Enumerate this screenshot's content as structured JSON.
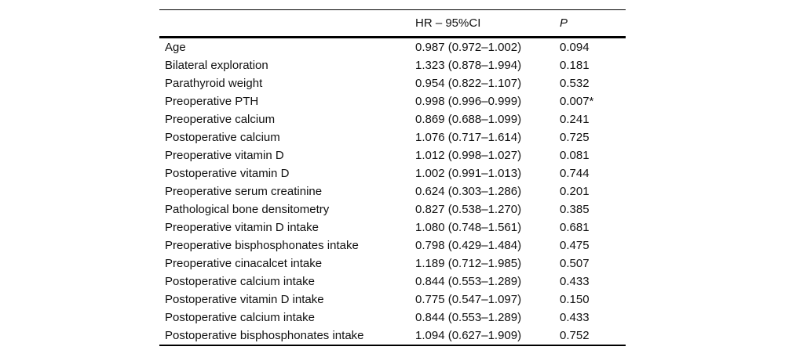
{
  "table": {
    "header": {
      "col1": "",
      "col2": "HR – 95%CI",
      "col3": "P"
    },
    "rows": [
      {
        "label": "Age",
        "hr_ci": "0.987 (0.972–1.002)",
        "p": "0.094"
      },
      {
        "label": "Bilateral exploration",
        "hr_ci": "1.323 (0.878–1.994)",
        "p": "0.181"
      },
      {
        "label": "Parathyroid weight",
        "hr_ci": "0.954 (0.822–1.107)",
        "p": "0.532"
      },
      {
        "label": "Preoperative PTH",
        "hr_ci": "0.998 (0.996–0.999)",
        "p": "0.007*"
      },
      {
        "label": "Preoperative calcium",
        "hr_ci": "0.869 (0.688–1.099)",
        "p": "0.241"
      },
      {
        "label": "Postoperative calcium",
        "hr_ci": "1.076 (0.717–1.614)",
        "p": "0.725"
      },
      {
        "label": "Preoperative vitamin D",
        "hr_ci": "1.012 (0.998–1.027)",
        "p": "0.081"
      },
      {
        "label": "Postoperative vitamin D",
        "hr_ci": "1.002 (0.991–1.013)",
        "p": "0.744"
      },
      {
        "label": "Preoperative serum creatinine",
        "hr_ci": "0.624 (0.303–1.286)",
        "p": "0.201"
      },
      {
        "label": "Pathological bone densitometry",
        "hr_ci": "0.827 (0.538–1.270)",
        "p": "0.385"
      },
      {
        "label": "Preoperative vitamin D intake",
        "hr_ci": "1.080 (0.748–1.561)",
        "p": "0.681"
      },
      {
        "label": "Preoperative bisphosphonates intake",
        "hr_ci": "0.798 (0.429–1.484)",
        "p": "0.475"
      },
      {
        "label": "Preoperative cinacalcet intake",
        "hr_ci": "1.189 (0.712–1.985)",
        "p": "0.507"
      },
      {
        "label": "Postoperative calcium intake",
        "hr_ci": "0.844 (0.553–1.289)",
        "p": "0.433"
      },
      {
        "label": "Postoperative vitamin D intake",
        "hr_ci": "0.775 (0.547–1.097)",
        "p": "0.150"
      },
      {
        "label": "Postoperative calcium intake",
        "hr_ci": "0.844 (0.553–1.289)",
        "p": "0.433"
      },
      {
        "label": "Postoperative bisphosphonates intake",
        "hr_ci": "1.094 (0.627–1.909)",
        "p": "0.752"
      }
    ],
    "colors": {
      "text": "#111111",
      "rule": "#000000",
      "background": "#ffffff"
    }
  }
}
